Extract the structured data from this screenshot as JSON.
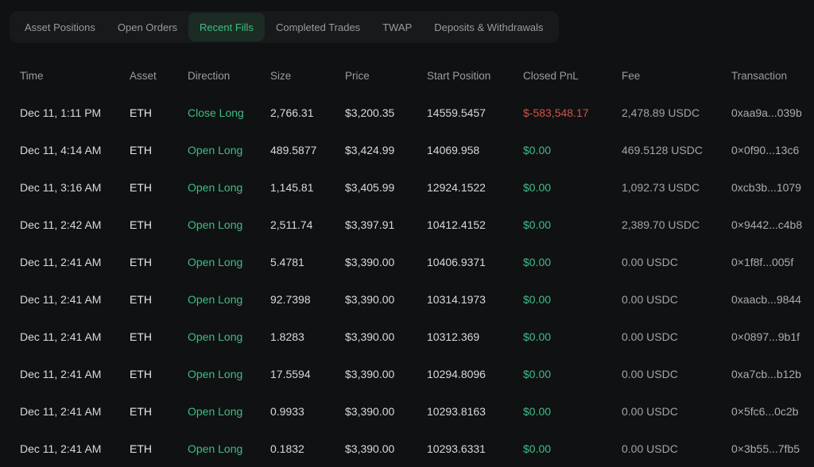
{
  "colors": {
    "positive": "#3fbd87",
    "negative": "#cd5449",
    "background": "#101113",
    "tab_strip": "#17191b",
    "active_tab_bg": "#1c2b23"
  },
  "tabs": {
    "items": [
      {
        "label": "Asset Positions",
        "active": false
      },
      {
        "label": "Open Orders",
        "active": false
      },
      {
        "label": "Recent Fills",
        "active": true
      },
      {
        "label": "Completed Trades",
        "active": false
      },
      {
        "label": "TWAP",
        "active": false
      },
      {
        "label": "Deposits & Withdrawals",
        "active": false
      }
    ]
  },
  "table": {
    "columns": [
      {
        "key": "time",
        "label": "Time"
      },
      {
        "key": "asset",
        "label": "Asset"
      },
      {
        "key": "direction",
        "label": "Direction"
      },
      {
        "key": "size",
        "label": "Size"
      },
      {
        "key": "price",
        "label": "Price"
      },
      {
        "key": "start_position",
        "label": "Start Position"
      },
      {
        "key": "closed_pnl",
        "label": "Closed PnL"
      },
      {
        "key": "fee",
        "label": "Fee"
      },
      {
        "key": "transaction",
        "label": "Transaction"
      }
    ],
    "rows": [
      {
        "time": "Dec 11, 1:11 PM",
        "asset": "ETH",
        "direction": "Close Long",
        "size": "2,766.31",
        "price": "$3,200.35",
        "start_position": "14559.5457",
        "closed_pnl": "$-583,548.17",
        "pnl_state": "loss",
        "fee": "2,478.89 USDC",
        "transaction": "0xaa9a...039b"
      },
      {
        "time": "Dec 11, 4:14 AM",
        "asset": "ETH",
        "direction": "Open Long",
        "size": "489.5877",
        "price": "$3,424.99",
        "start_position": "14069.958",
        "closed_pnl": "$0.00",
        "pnl_state": "flat",
        "fee": "469.5128 USDC",
        "transaction": "0×0f90...13c6"
      },
      {
        "time": "Dec 11, 3:16 AM",
        "asset": "ETH",
        "direction": "Open Long",
        "size": "1,145.81",
        "price": "$3,405.99",
        "start_position": "12924.1522",
        "closed_pnl": "$0.00",
        "pnl_state": "flat",
        "fee": "1,092.73 USDC",
        "transaction": "0xcb3b...1079"
      },
      {
        "time": "Dec 11, 2:42 AM",
        "asset": "ETH",
        "direction": "Open Long",
        "size": "2,511.74",
        "price": "$3,397.91",
        "start_position": "10412.4152",
        "closed_pnl": "$0.00",
        "pnl_state": "flat",
        "fee": "2,389.70 USDC",
        "transaction": "0×9442...c4b8"
      },
      {
        "time": "Dec 11, 2:41 AM",
        "asset": "ETH",
        "direction": "Open Long",
        "size": "5.4781",
        "price": "$3,390.00",
        "start_position": "10406.9371",
        "closed_pnl": "$0.00",
        "pnl_state": "flat",
        "fee": "0.00 USDC",
        "transaction": "0×1f8f...005f"
      },
      {
        "time": "Dec 11, 2:41 AM",
        "asset": "ETH",
        "direction": "Open Long",
        "size": "92.7398",
        "price": "$3,390.00",
        "start_position": "10314.1973",
        "closed_pnl": "$0.00",
        "pnl_state": "flat",
        "fee": "0.00 USDC",
        "transaction": "0xaacb...9844"
      },
      {
        "time": "Dec 11, 2:41 AM",
        "asset": "ETH",
        "direction": "Open Long",
        "size": "1.8283",
        "price": "$3,390.00",
        "start_position": "10312.369",
        "closed_pnl": "$0.00",
        "pnl_state": "flat",
        "fee": "0.00 USDC",
        "transaction": "0×0897...9b1f"
      },
      {
        "time": "Dec 11, 2:41 AM",
        "asset": "ETH",
        "direction": "Open Long",
        "size": "17.5594",
        "price": "$3,390.00",
        "start_position": "10294.8096",
        "closed_pnl": "$0.00",
        "pnl_state": "flat",
        "fee": "0.00 USDC",
        "transaction": "0xa7cb...b12b"
      },
      {
        "time": "Dec 11, 2:41 AM",
        "asset": "ETH",
        "direction": "Open Long",
        "size": "0.9933",
        "price": "$3,390.00",
        "start_position": "10293.8163",
        "closed_pnl": "$0.00",
        "pnl_state": "flat",
        "fee": "0.00 USDC",
        "transaction": "0×5fc6...0c2b"
      },
      {
        "time": "Dec 11, 2:41 AM",
        "asset": "ETH",
        "direction": "Open Long",
        "size": "0.1832",
        "price": "$3,390.00",
        "start_position": "10293.6331",
        "closed_pnl": "$0.00",
        "pnl_state": "flat",
        "fee": "0.00 USDC",
        "transaction": "0×3b55...7fb5"
      }
    ]
  }
}
